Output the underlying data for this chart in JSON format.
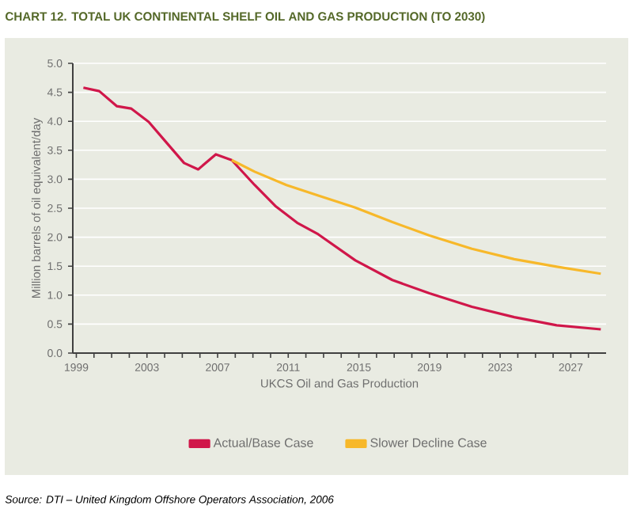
{
  "chart_data": {
    "type": "line",
    "title": "CHART 12. TOTAL UK CONTINENTAL SHELF OIL AND GAS PRODUCTION (TO 2030)",
    "xlabel": "UKCS Oil and Gas Production",
    "ylabel": "Million barrels of oil equivalent/day",
    "annotations": [
      "Source: DTI – United Kingdom Offshore Operators Association, 2006"
    ],
    "xlim": [
      1998.8,
      2029
    ],
    "ylim": [
      0,
      5
    ],
    "xticks": [
      1999,
      {
        "value": 2000,
        "label": null
      },
      {
        "value": 2001,
        "label": null
      },
      {
        "value": 2002,
        "label": null
      },
      2003,
      {
        "value": 2004,
        "label": null
      },
      {
        "value": 2005,
        "label": null
      },
      {
        "value": 2006,
        "label": null
      },
      2007,
      {
        "value": 2008,
        "label": null
      },
      {
        "value": 2009,
        "label": null
      },
      {
        "value": 2010,
        "label": null
      },
      2011,
      {
        "value": 2012,
        "label": null
      },
      {
        "value": 2013,
        "label": null
      },
      {
        "value": 2014,
        "label": null
      },
      2015,
      {
        "value": 2016,
        "label": null
      },
      {
        "value": 2017,
        "label": null
      },
      {
        "value": 2018,
        "label": null
      },
      2019,
      {
        "value": 2020,
        "label": null
      },
      {
        "value": 2021,
        "label": null
      },
      {
        "value": 2022,
        "label": null
      },
      2023,
      {
        "value": 2024,
        "label": null
      },
      {
        "value": 2025,
        "label": null
      },
      {
        "value": 2026,
        "label": null
      },
      2027,
      {
        "value": 2028,
        "label": null
      }
    ],
    "yticks": [
      {
        "value": 0,
        "label": "0.0"
      },
      0.5,
      {
        "value": 1,
        "label": "1.0"
      },
      1.5,
      {
        "value": 2,
        "label": "2.0"
      },
      2.5,
      {
        "value": 3,
        "label": "3.0"
      },
      3.5,
      {
        "value": 4,
        "label": "4.0"
      },
      4.5,
      {
        "value": 5,
        "label": "5.0"
      }
    ],
    "grid": "y",
    "legend": "bottom",
    "marker": "none",
    "line_style": "solid",
    "series": [
      {
        "name": "Actual/Base Case",
        "color": "#d0174a",
        "x": [
          1999.4,
          2000.3,
          2001.3,
          2002.1,
          2003.1,
          2004.0,
          2005.1,
          2005.9,
          2006.9,
          2007.8,
          2009.1,
          2010.3,
          2011.5,
          2012.7,
          2014.8,
          2016.9,
          2019.0,
          2021.4,
          2023.8,
          2026.2,
          2028.7
        ],
        "values": [
          4.58,
          4.52,
          4.26,
          4.22,
          3.99,
          3.67,
          3.28,
          3.17,
          3.43,
          3.33,
          2.9,
          2.53,
          2.25,
          2.05,
          1.6,
          1.26,
          1.03,
          0.8,
          0.62,
          0.48,
          0.41
        ]
      },
      {
        "name": "Slower Decline Case",
        "color": "#f7b82a",
        "x": [
          2007.8,
          2009.1,
          2010.9,
          2012.7,
          2014.8,
          2016.9,
          2019.0,
          2021.4,
          2023.8,
          2026.2,
          2028.7
        ],
        "values": [
          3.33,
          3.13,
          2.9,
          2.72,
          2.51,
          2.26,
          2.03,
          1.8,
          1.62,
          1.49,
          1.37
        ]
      }
    ]
  }
}
